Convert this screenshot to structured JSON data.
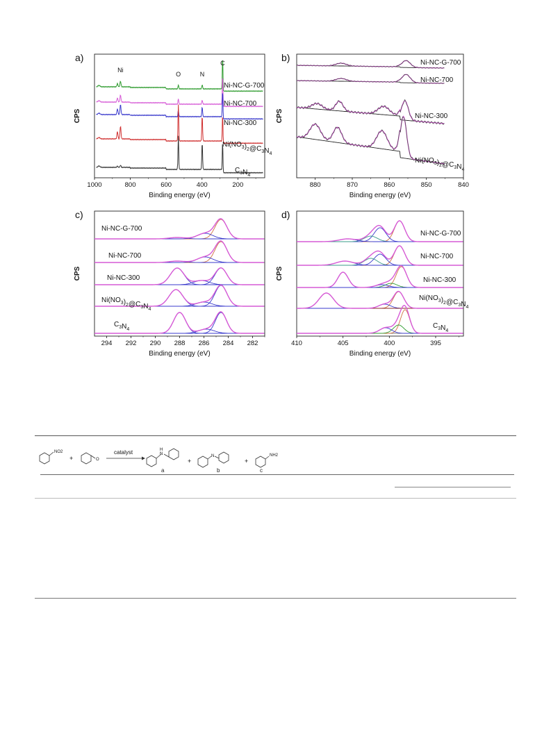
{
  "figure": {
    "panels": [
      {
        "id": "a",
        "label": "a)",
        "ylabel": "CPS",
        "xlabel": "Binding energy (eV)",
        "xlim": [
          1000,
          50
        ],
        "xticks": [
          1000,
          800,
          600,
          400,
          200
        ],
        "peak_labels": [
          {
            "text": "Ni",
            "x": 855
          },
          {
            "text": "O",
            "x": 532
          },
          {
            "text": "N",
            "x": 399
          },
          {
            "text": "C",
            "x": 285
          }
        ],
        "curve_labels": [
          "Ni-NC-G-700",
          "Ni-NC-700",
          "Ni-NC-300",
          "Ni(NO3)2@C3N4",
          "C3N4"
        ],
        "colors": [
          "#2e9b2e",
          "#d65ad6",
          "#3a3acc",
          "#d03030",
          "#333333"
        ]
      },
      {
        "id": "b",
        "label": "b)",
        "ylabel": "CPS",
        "xlabel": "Binding energy (eV)",
        "xlim": [
          885,
          840
        ],
        "xticks": [
          880,
          870,
          860,
          850,
          840
        ],
        "curve_labels": [
          "Ni-NC-G-700",
          "Ni-NC-700",
          "Ni-NC-300",
          "Ni(NO3)2@C3N4"
        ]
      },
      {
        "id": "c",
        "label": "c)",
        "ylabel": "CPS",
        "xlabel": "Binding energy (eV)",
        "xlim": [
          295,
          281
        ],
        "xticks": [
          294,
          292,
          290,
          288,
          286,
          284,
          282
        ],
        "curve_labels": [
          "Ni-NC-G-700",
          "Ni-NC-700",
          "Ni-NC-300",
          "Ni(NO3)2@C3N4",
          "C3N4"
        ]
      },
      {
        "id": "d",
        "label": "d)",
        "ylabel": "CPS",
        "xlabel": "Binding energy (eV)",
        "xlim": [
          410,
          392
        ],
        "xticks": [
          410,
          405,
          400,
          395
        ],
        "curve_labels": [
          "Ni-NC-G-700",
          "Ni-NC-700",
          "Ni-NC-300",
          "Ni(NO3)2@C3N4",
          "C3N4"
        ]
      }
    ]
  },
  "scheme": {
    "reagent_1_sub": "NO2",
    "plus_1": "+",
    "reagent_2_atom": "O",
    "arrow_label": "catalyst",
    "product_a_atom": "H",
    "product_a_atom2": "N",
    "plus_2": "+",
    "product_b_atom": "N",
    "plus_3": "+",
    "product_c_sub": "NH2",
    "letters": [
      "a",
      "b",
      "c"
    ]
  }
}
